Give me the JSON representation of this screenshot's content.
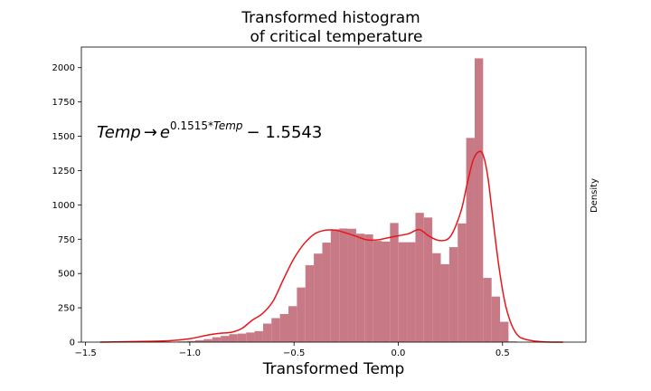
{
  "chart_data": {
    "type": "bar",
    "title_lines": [
      "Transformed histogram",
      "of critical temperature"
    ],
    "xlabel": "Transformed Temp",
    "ylabel_right": "Density",
    "annotation": {
      "temp": "Temp",
      "arrow": "→",
      "base": "e",
      "exponent_number": "0.1515",
      "exponent_op": "*",
      "exponent_var": "Temp",
      "tail": "− 1.5543"
    },
    "xlim": [
      -1.52,
      0.9
    ],
    "ylim": [
      0,
      2150
    ],
    "xticks": [
      -1.5,
      -1.0,
      -0.5,
      0.0,
      0.5
    ],
    "xtick_labels": [
      "−1.5",
      "−1.0",
      "−0.5",
      "0.0",
      "0.5"
    ],
    "yticks": [
      0,
      250,
      500,
      750,
      1000,
      1250,
      1500,
      1750,
      2000
    ],
    "ytick_labels": [
      "0",
      "250",
      "500",
      "750",
      "1000",
      "1250",
      "1500",
      "1750",
      "2000"
    ],
    "bar_color": "#c87986",
    "kde_color": "#e8161a",
    "bins": {
      "start": -1.42,
      "width": 0.0406,
      "counts": [
        2,
        0,
        1,
        3,
        0,
        2,
        4,
        3,
        2,
        5,
        8,
        14,
        22,
        36,
        45,
        58,
        62,
        70,
        80,
        135,
        175,
        205,
        262,
        398,
        560,
        645,
        725,
        822,
        828,
        826,
        790,
        785,
        738,
        733,
        868,
        728,
        728,
        942,
        908,
        648,
        568,
        692,
        865,
        1488,
        2068,
        468,
        332,
        148,
        5
      ]
    },
    "kde": {
      "x": [
        -1.43,
        -1.3,
        -1.2,
        -1.1,
        -1.0,
        -0.95,
        -0.9,
        -0.85,
        -0.8,
        -0.75,
        -0.7,
        -0.65,
        -0.6,
        -0.55,
        -0.5,
        -0.45,
        -0.4,
        -0.35,
        -0.3,
        -0.25,
        -0.2,
        -0.15,
        -0.1,
        -0.05,
        0.0,
        0.05,
        0.1,
        0.15,
        0.2,
        0.25,
        0.3,
        0.33,
        0.36,
        0.39,
        0.41,
        0.43,
        0.45,
        0.48,
        0.51,
        0.54,
        0.57,
        0.6,
        0.65,
        0.7,
        0.79
      ],
      "y": [
        0,
        3,
        6,
        10,
        25,
        40,
        55,
        65,
        72,
        100,
        160,
        210,
        300,
        460,
        610,
        720,
        790,
        815,
        815,
        795,
        770,
        745,
        745,
        760,
        775,
        790,
        820,
        770,
        740,
        770,
        950,
        1150,
        1330,
        1390,
        1350,
        1200,
        950,
        580,
        300,
        140,
        55,
        25,
        8,
        2,
        0
      ]
    }
  }
}
